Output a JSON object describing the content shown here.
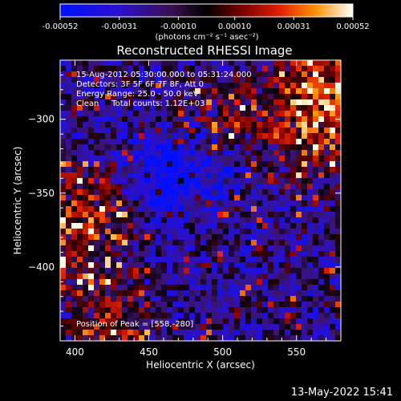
{
  "chart_data": {
    "type": "heatmap",
    "title": "Reconstructed RHESSI Image",
    "xlabel": "Heliocentric X (arcsec)",
    "ylabel": "Heliocentric Y (arcsec)",
    "xlim": [
      390,
      580
    ],
    "ylim": [
      -450,
      -260
    ],
    "xticks": [
      400,
      450,
      500,
      550
    ],
    "yticks": [
      -300,
      -350,
      -400
    ],
    "colorbar": {
      "ticks": [
        "-0.00052",
        "-0.00031",
        "-0.00010",
        "0.00010",
        "0.00031",
        "0.00052"
      ],
      "range": [
        -0.00052,
        0.00052
      ],
      "unit_label": "(photons cm⁻² s⁻¹ asec⁻²)"
    },
    "annotations": [
      "15-Aug-2012 05:30:00.000 to 05:31:24.000",
      "Detectors: 3F 5F 6F 7F 8F, Att 0",
      "Energy Range: 25.0 - 50.0 keV",
      "Clean     Total counts: 1.12E+03"
    ],
    "peak_text": "Position of Peak = [558,-280]",
    "peak": [
      558,
      -280
    ],
    "grid": false
  },
  "footer": {
    "timestamp": "13-May-2022 15:41"
  }
}
